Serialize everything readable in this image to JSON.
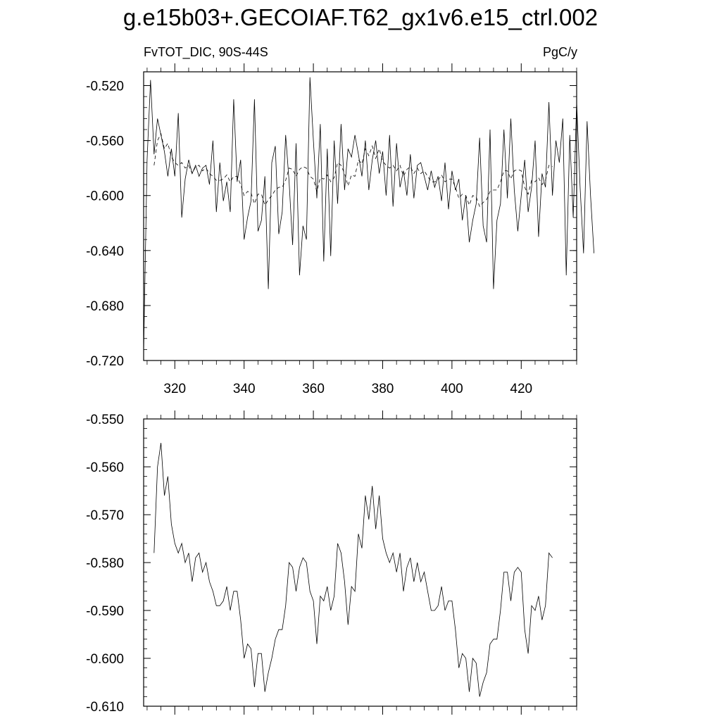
{
  "title": "g.e15b03+.GECOIAF.T62_gx1v6.e15_ctrl.002",
  "subtitle_left": "FvTOT_DIC, 90S-44S",
  "subtitle_right": "PgC/y",
  "chart_data": [
    {
      "type": "line",
      "x_ticks": [
        320,
        340,
        360,
        380,
        400,
        420
      ],
      "y_ticks": [
        "-0.520",
        "-0.560",
        "-0.600",
        "-0.640",
        "-0.680",
        "-0.720"
      ],
      "xlim": [
        311,
        436
      ],
      "ylim": [
        -0.72,
        -0.51
      ],
      "series": [
        {
          "style": "solid",
          "x_start": 311,
          "x_step": 1,
          "values": [
            -0.714,
            -0.574,
            -0.516,
            -0.57,
            -0.544,
            -0.556,
            -0.568,
            -0.586,
            -0.566,
            -0.586,
            -0.54,
            -0.616,
            -0.588,
            -0.574,
            -0.584,
            -0.578,
            -0.586,
            -0.58,
            -0.578,
            -0.592,
            -0.56,
            -0.612,
            -0.576,
            -0.604,
            -0.59,
            -0.612,
            -0.53,
            -0.59,
            -0.574,
            -0.632,
            -0.616,
            -0.604,
            -0.53,
            -0.626,
            -0.618,
            -0.586,
            -0.668,
            -0.576,
            -0.564,
            -0.628,
            -0.612,
            -0.556,
            -0.59,
            -0.636,
            -0.562,
            -0.658,
            -0.622,
            -0.632,
            -0.514,
            -0.56,
            -0.602,
            -0.548,
            -0.648,
            -0.566,
            -0.644,
            -0.56,
            -0.606,
            -0.548,
            -0.596,
            -0.566,
            -0.572,
            -0.556,
            -0.57,
            -0.586,
            -0.56,
            -0.596,
            -0.574,
            -0.56,
            -0.584,
            -0.568,
            -0.6,
            -0.556,
            -0.608,
            -0.562,
            -0.594,
            -0.582,
            -0.6,
            -0.57,
            -0.602,
            -0.578,
            -0.576,
            -0.586,
            -0.596,
            -0.582,
            -0.594,
            -0.586,
            -0.604,
            -0.576,
            -0.61,
            -0.582,
            -0.596,
            -0.588,
            -0.618,
            -0.6,
            -0.634,
            -0.618,
            -0.606,
            -0.558,
            -0.622,
            -0.634,
            -0.552,
            -0.668,
            -0.618,
            -0.606,
            -0.552,
            -0.602,
            -0.544,
            -0.596,
            -0.626,
            -0.6,
            -0.574,
            -0.612,
            -0.594,
            -0.56,
            -0.63,
            -0.584,
            -0.594,
            -0.532,
            -0.6,
            -0.56,
            -0.576,
            -0.544,
            -0.658,
            -0.556,
            -0.616,
            -0.532,
            -0.594,
            -0.642,
            -0.546,
            -0.6,
            -0.642
          ]
        },
        {
          "style": "dashed",
          "x_start": 314,
          "x_step": 1,
          "values": [
            -0.578,
            -0.56,
            -0.555,
            -0.566,
            -0.562,
            -0.572,
            -0.576,
            -0.578,
            -0.576,
            -0.58,
            -0.578,
            -0.584,
            -0.579,
            -0.578,
            -0.582,
            -0.58,
            -0.584,
            -0.586,
            -0.589,
            -0.589,
            -0.588,
            -0.585,
            -0.59,
            -0.586,
            -0.586,
            -0.592,
            -0.6,
            -0.597,
            -0.598,
            -0.606,
            -0.599,
            -0.599,
            -0.607,
            -0.603,
            -0.6,
            -0.596,
            -0.594,
            -0.594,
            -0.589,
            -0.58,
            -0.581,
            -0.586,
            -0.581,
            -0.579,
            -0.58,
            -0.586,
            -0.588,
            -0.597,
            -0.587,
            -0.588,
            -0.585,
            -0.59,
            -0.587,
            -0.576,
            -0.578,
            -0.584,
            -0.593,
            -0.585,
            -0.586,
            -0.574,
            -0.577,
            -0.566,
            -0.571,
            -0.564,
            -0.573,
            -0.566,
            -0.575,
            -0.578,
            -0.58,
            -0.578,
            -0.582,
            -0.578,
            -0.586,
            -0.581,
            -0.579,
            -0.584,
            -0.58,
            -0.584,
            -0.582,
            -0.586,
            -0.59,
            -0.59,
            -0.589,
            -0.585,
            -0.59,
            -0.588,
            -0.588,
            -0.594,
            -0.602,
            -0.599,
            -0.6,
            -0.607,
            -0.6,
            -0.601,
            -0.608,
            -0.605,
            -0.603,
            -0.597,
            -0.596,
            -0.596,
            -0.59,
            -0.582,
            -0.582,
            -0.588,
            -0.582,
            -0.581,
            -0.582,
            -0.594,
            -0.599,
            -0.589,
            -0.59,
            -0.587,
            -0.592,
            -0.589,
            -0.578,
            -0.579
          ]
        }
      ]
    },
    {
      "type": "line",
      "x_ticks": [
        320,
        340,
        360,
        380,
        400,
        420
      ],
      "y_ticks": [
        "-0.550",
        "-0.560",
        "-0.570",
        "-0.580",
        "-0.590",
        "-0.600",
        "-0.610"
      ],
      "xlim": [
        311,
        436
      ],
      "ylim": [
        -0.61,
        -0.55
      ],
      "series": [
        {
          "style": "solid",
          "x_start": 314,
          "x_step": 1,
          "values": [
            -0.578,
            -0.56,
            -0.555,
            -0.566,
            -0.562,
            -0.572,
            -0.576,
            -0.578,
            -0.576,
            -0.58,
            -0.578,
            -0.584,
            -0.579,
            -0.578,
            -0.582,
            -0.58,
            -0.584,
            -0.586,
            -0.589,
            -0.589,
            -0.588,
            -0.585,
            -0.59,
            -0.586,
            -0.586,
            -0.592,
            -0.6,
            -0.597,
            -0.598,
            -0.606,
            -0.599,
            -0.599,
            -0.607,
            -0.603,
            -0.6,
            -0.596,
            -0.594,
            -0.594,
            -0.589,
            -0.58,
            -0.581,
            -0.586,
            -0.581,
            -0.579,
            -0.58,
            -0.586,
            -0.588,
            -0.597,
            -0.587,
            -0.588,
            -0.585,
            -0.59,
            -0.587,
            -0.576,
            -0.578,
            -0.584,
            -0.593,
            -0.585,
            -0.586,
            -0.574,
            -0.577,
            -0.566,
            -0.571,
            -0.564,
            -0.573,
            -0.566,
            -0.575,
            -0.578,
            -0.58,
            -0.578,
            -0.582,
            -0.578,
            -0.586,
            -0.581,
            -0.579,
            -0.584,
            -0.58,
            -0.584,
            -0.582,
            -0.586,
            -0.59,
            -0.59,
            -0.589,
            -0.585,
            -0.59,
            -0.588,
            -0.588,
            -0.594,
            -0.602,
            -0.599,
            -0.6,
            -0.607,
            -0.6,
            -0.601,
            -0.608,
            -0.605,
            -0.603,
            -0.597,
            -0.596,
            -0.596,
            -0.59,
            -0.582,
            -0.582,
            -0.588,
            -0.582,
            -0.581,
            -0.582,
            -0.594,
            -0.599,
            -0.589,
            -0.59,
            -0.587,
            -0.592,
            -0.589,
            -0.578,
            -0.579
          ]
        }
      ]
    }
  ]
}
